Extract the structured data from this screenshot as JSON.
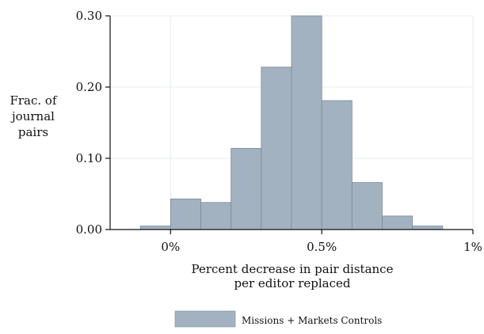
{
  "chart_data": {
    "type": "bar",
    "subtype": "histogram",
    "bin_edges": [
      -0.1,
      0.0,
      0.1,
      0.2,
      0.3,
      0.4,
      0.5,
      0.6,
      0.7,
      0.8,
      0.9
    ],
    "values": [
      0.005,
      0.043,
      0.038,
      0.114,
      0.228,
      0.3,
      0.181,
      0.066,
      0.019,
      0.005
    ],
    "xlim": [
      -0.2,
      1.0
    ],
    "ylim": [
      0.0,
      0.3
    ],
    "x_ticks": [
      {
        "value": 0.0,
        "label": "0%"
      },
      {
        "value": 0.5,
        "label": "0.5%"
      },
      {
        "value": 1.0,
        "label": "1%"
      }
    ],
    "y_ticks": [
      {
        "value": 0.0,
        "label": "0.00"
      },
      {
        "value": 0.1,
        "label": "0.10"
      },
      {
        "value": 0.2,
        "label": "0.20"
      },
      {
        "value": 0.3,
        "label": "0.30"
      }
    ],
    "ylabel_lines": [
      "Frac. of",
      "journal",
      "pairs"
    ],
    "xlabel_lines": [
      "Percent decrease in pair distance",
      "per editor replaced"
    ],
    "series": [
      {
        "name": "Missions + Markets Controls",
        "color": "#a3b2c1",
        "edge_color": "#7a8a99"
      }
    ],
    "grid": true,
    "grid_color": "#e6eef3",
    "legend_position": "bottom"
  }
}
